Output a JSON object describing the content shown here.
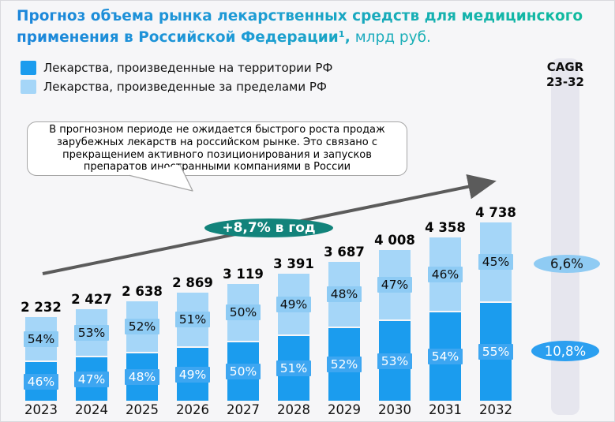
{
  "title": {
    "line1": "Прогноз объема рынка лекарственных средств для медицинского",
    "line2_bold": "применения в Российской Федерации¹,",
    "line2_unit": " млрд руб."
  },
  "legend": {
    "items": [
      {
        "label": "Лекарства, произведенные на территории РФ",
        "color": "#1b9cee"
      },
      {
        "label": "Лекарства, произведенные за пределами РФ",
        "color": "#a5d6f8"
      }
    ]
  },
  "cagr_panel": {
    "title_line1": "CAGR",
    "title_line2": "23-32",
    "imported": {
      "value": "6,6%",
      "fill": "#8fcbf3",
      "text_color": "#111111"
    },
    "domestic": {
      "value": "10,8%",
      "fill": "#2b9ff0",
      "text_color": "#ffffff"
    }
  },
  "callout": {
    "text": "В прогнозном периоде не ожидается быстрого роста продаж зарубежных лекарств на российском рынке. Это связано с прекращением активного позиционирования и запусков препаратов иностранными компаниями в России"
  },
  "growth_badge": {
    "label": "+8,7% в год",
    "fill": "#12837b"
  },
  "chart_data": {
    "type": "bar",
    "stacked": true,
    "title": "Прогноз объема рынка лекарственных средств для медицинского применения в Российской Федерации, млрд руб.",
    "unit": "млрд руб.",
    "categories": [
      "2023",
      "2024",
      "2025",
      "2026",
      "2027",
      "2028",
      "2029",
      "2030",
      "2031",
      "2032"
    ],
    "totals": [
      2232,
      2427,
      2638,
      2869,
      3119,
      3391,
      3687,
      4008,
      4358,
      4738
    ],
    "total_labels": [
      "2 232",
      "2 427",
      "2 638",
      "2 869",
      "3 119",
      "3 391",
      "3 687",
      "4 008",
      "4 358",
      "4 738"
    ],
    "series": [
      {
        "name": "Лекарства, произведенные на территории РФ",
        "position": "bottom",
        "color": "#1b9cee",
        "badge_color": "#3da6f1",
        "text_color": "#ffffff",
        "share_pct": [
          46,
          47,
          48,
          49,
          50,
          51,
          52,
          53,
          54,
          55
        ]
      },
      {
        "name": "Лекарства, произведенные за пределами РФ",
        "position": "top",
        "color": "#a5d6f8",
        "badge_color": "#8ecbf4",
        "text_color": "#0b0b0b",
        "share_pct": [
          54,
          53,
          52,
          51,
          50,
          49,
          48,
          47,
          46,
          45
        ]
      }
    ],
    "annotations": {
      "growth_per_year": "+8,7% в год",
      "cagr_header": "CAGR 23-32",
      "cagr_imported": "6,6%",
      "cagr_domestic": "10,8%"
    },
    "legend_position": "top-left",
    "grid": false,
    "value_labels": "totals above bars, share % inside segments"
  }
}
